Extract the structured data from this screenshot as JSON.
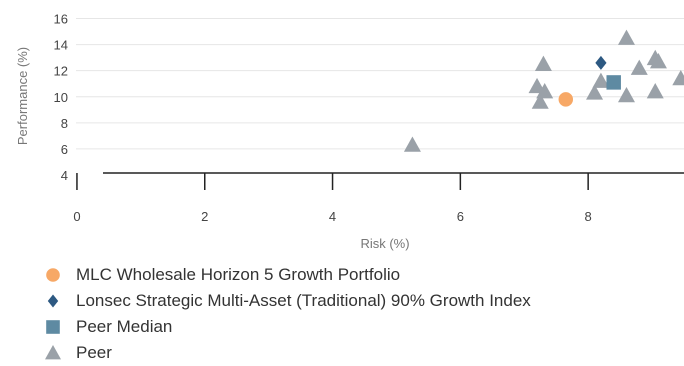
{
  "chart_data": {
    "type": "scatter",
    "xlabel": "Risk (%)",
    "ylabel": "Performance (%)",
    "xlim": [
      -0.5,
      9.5
    ],
    "ylim": [
      4,
      16.5
    ],
    "x_ticks": [
      0,
      2,
      4,
      6,
      8
    ],
    "y_ticks": [
      4,
      6,
      8,
      10,
      12,
      14,
      16
    ],
    "grid": "horizontal",
    "legend_position": "bottom",
    "series": [
      {
        "name": "MLC Wholesale Horizon 5 Growth Portfolio",
        "marker": "circle",
        "color": "#f7a866",
        "points": [
          [
            7.65,
            9.8
          ]
        ]
      },
      {
        "name": "Lonsec Strategic Multi-Asset (Traditional) 90% Growth Index",
        "marker": "diamond",
        "color": "#2d5982",
        "points": [
          [
            8.2,
            12.6
          ]
        ]
      },
      {
        "name": "Peer Median",
        "marker": "square",
        "color": "#5e8aa2",
        "points": [
          [
            8.4,
            11.1
          ]
        ]
      },
      {
        "name": "Peer",
        "marker": "triangle",
        "color": "#9aa1a8",
        "points": [
          [
            5.25,
            6.3
          ],
          [
            7.2,
            10.8
          ],
          [
            7.25,
            9.6
          ],
          [
            7.3,
            12.5
          ],
          [
            7.32,
            10.4
          ],
          [
            8.1,
            10.3
          ],
          [
            8.2,
            11.2
          ],
          [
            8.6,
            14.5
          ],
          [
            8.6,
            10.1
          ],
          [
            8.8,
            12.2
          ],
          [
            9.05,
            12.95
          ],
          [
            9.1,
            12.7
          ],
          [
            9.05,
            10.4
          ],
          [
            9.45,
            11.4
          ]
        ]
      }
    ]
  }
}
